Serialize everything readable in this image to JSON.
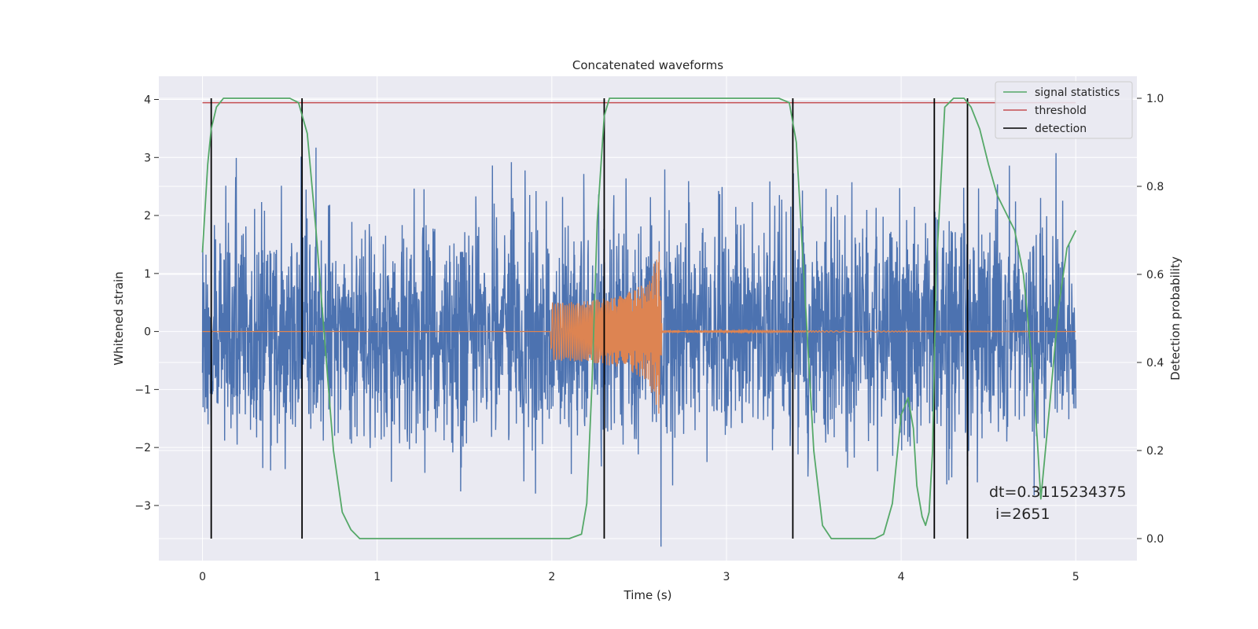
{
  "chart_data": {
    "type": "line",
    "title": "Concatenated waveforms",
    "xlabel": "Time (s)",
    "ylabel": "Whitened strain",
    "y2label": "Detection probability",
    "xlim": [
      -0.25,
      5.35
    ],
    "ylim": [
      -3.95,
      4.4
    ],
    "y2lim": [
      -0.05,
      1.05
    ],
    "xticks": [
      "0",
      "1",
      "2",
      "3",
      "4",
      "5"
    ],
    "yticks": [
      "4",
      "3",
      "2",
      "1",
      "0",
      "−1",
      "−2",
      "−3"
    ],
    "y2ticks": [
      "1.0",
      "0.8",
      "0.6",
      "0.4",
      "0.2",
      "0.0"
    ],
    "grid": true,
    "legend_position": "top-right",
    "legend": [
      {
        "name": "signal statistics",
        "color": "#55a868"
      },
      {
        "name": "threshold",
        "color": "#c44e52"
      },
      {
        "name": "detection",
        "color": "#000000"
      }
    ],
    "colors": {
      "strain": "#4c72b0",
      "waveform": "#dd8452",
      "statistics": "#55a868",
      "threshold": "#c44e52",
      "detection": "#000000",
      "background": "#eaeaf2"
    },
    "threshold": 0.99,
    "detections": [
      0.05,
      0.57,
      2.3,
      3.38,
      4.19,
      4.38
    ],
    "signal_statistics": {
      "x": [
        0,
        0.03,
        0.05,
        0.08,
        0.12,
        0.2,
        0.5,
        0.55,
        0.6,
        0.65,
        0.7,
        0.75,
        0.8,
        0.85,
        0.9,
        1.5,
        2.1,
        2.17,
        2.2,
        2.23,
        2.26,
        2.3,
        2.33,
        2.36,
        2.4,
        2.6,
        3.3,
        3.36,
        3.4,
        3.45,
        3.5,
        3.55,
        3.6,
        3.85,
        3.9,
        3.95,
        4.0,
        4.04,
        4.07,
        4.09,
        4.12,
        4.14,
        4.16,
        4.18,
        4.2,
        4.25,
        4.3,
        4.36,
        4.4,
        4.45,
        4.5,
        4.55,
        4.6,
        4.65,
        4.7,
        4.75,
        4.78,
        4.8,
        4.85,
        4.9,
        4.95,
        5.0
      ],
      "y": [
        0.65,
        0.85,
        0.93,
        0.98,
        1.0,
        1.0,
        1.0,
        0.99,
        0.92,
        0.7,
        0.45,
        0.2,
        0.06,
        0.02,
        0.0,
        0.0,
        0.0,
        0.01,
        0.08,
        0.35,
        0.72,
        0.96,
        1.0,
        1.0,
        1.0,
        1.0,
        1.0,
        0.99,
        0.9,
        0.55,
        0.2,
        0.03,
        0.0,
        0.0,
        0.01,
        0.08,
        0.28,
        0.32,
        0.25,
        0.12,
        0.05,
        0.03,
        0.06,
        0.2,
        0.6,
        0.98,
        1.0,
        1.0,
        0.98,
        0.93,
        0.85,
        0.78,
        0.74,
        0.7,
        0.6,
        0.4,
        0.22,
        0.09,
        0.3,
        0.52,
        0.66,
        0.7
      ]
    },
    "strain_noise": {
      "x_range": [
        0,
        5
      ],
      "typical_amplitude": 1.0,
      "peak_amplitude": 4.0
    },
    "waveform": {
      "x": [
        0,
        1.99,
        2.0,
        2.2,
        2.4,
        2.55,
        2.6,
        2.62,
        2.63,
        5.0
      ],
      "envelope": [
        0,
        0,
        0.5,
        0.52,
        0.62,
        0.85,
        1.3,
        1.5,
        0.02,
        0
      ]
    },
    "annotations": [
      "dt=0.3115234375",
      "i=2651"
    ]
  }
}
